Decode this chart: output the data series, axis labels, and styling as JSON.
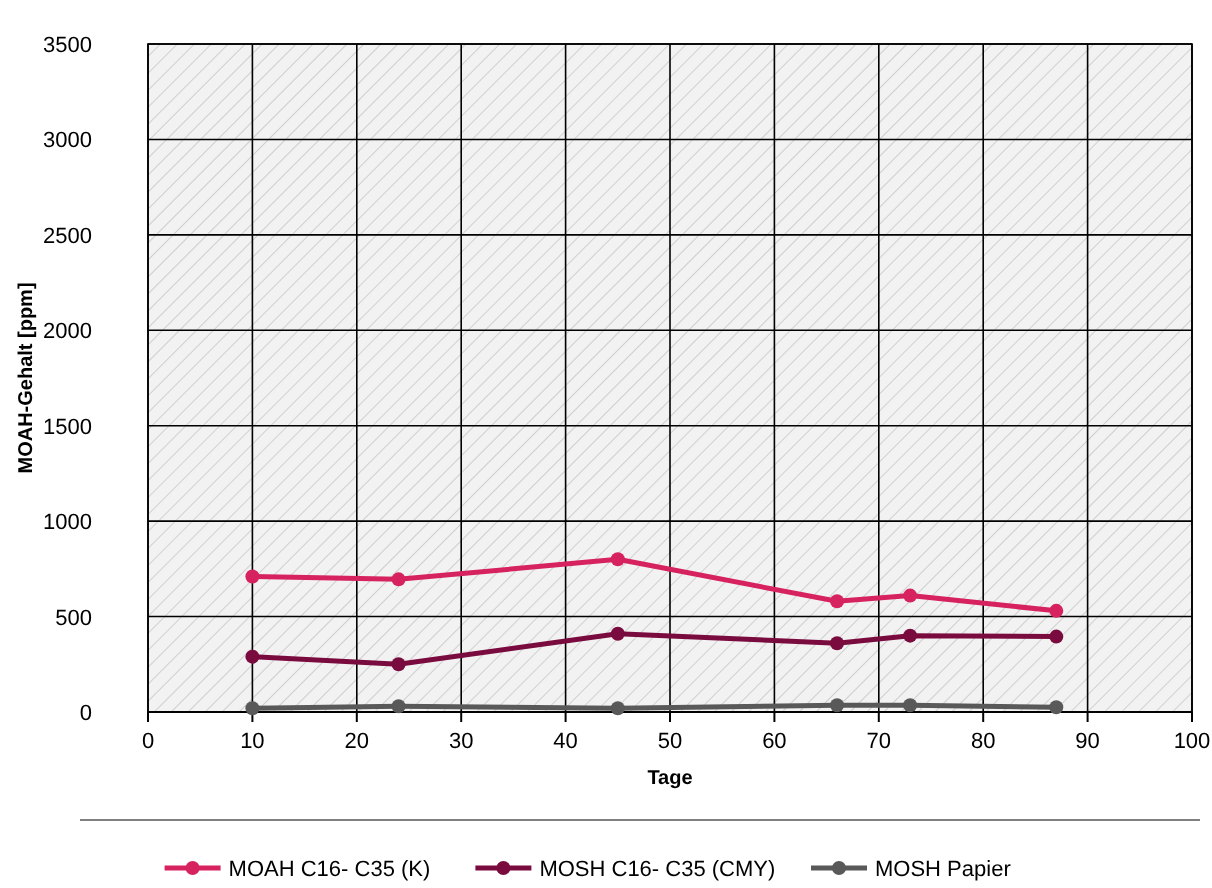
{
  "chart_data": {
    "type": "line",
    "xlabel": "Tage",
    "ylabel": "MOAH-Gehalt [ppm]",
    "x": [
      10,
      24,
      45,
      66,
      73,
      87
    ],
    "series": [
      {
        "name": "MOAH C16- C35 (K)",
        "color": "#d6225f",
        "values": [
          710,
          695,
          800,
          580,
          610,
          530
        ]
      },
      {
        "name": "MOSH C16- C35 (CMY)",
        "color": "#7a0b3e",
        "values": [
          290,
          250,
          410,
          360,
          400,
          395
        ]
      },
      {
        "name": "MOSH Papier",
        "color": "#595959",
        "values": [
          20,
          30,
          20,
          35,
          35,
          25
        ]
      }
    ],
    "xlim": [
      0,
      100
    ],
    "xticks": [
      0,
      10,
      20,
      30,
      40,
      50,
      60,
      70,
      80,
      90,
      100
    ],
    "ylim": [
      0,
      3500
    ],
    "yticks": [
      0,
      500,
      1000,
      1500,
      2000,
      2500,
      3000,
      3500
    ],
    "grid": true,
    "legend": "bottom",
    "marker": "circle",
    "line_style": "solid"
  }
}
